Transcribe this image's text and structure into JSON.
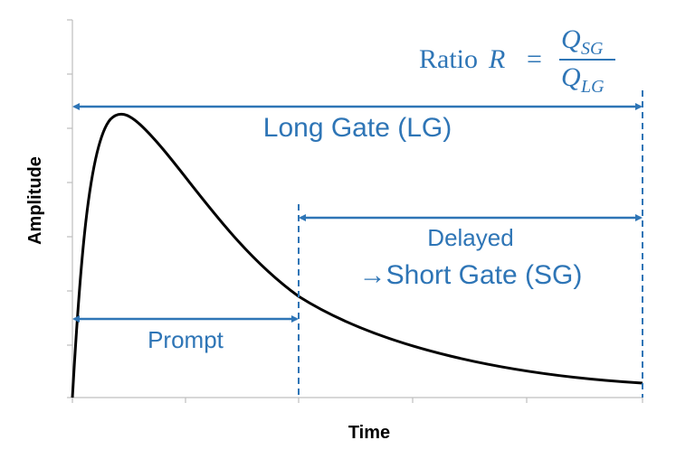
{
  "axes": {
    "y_label": "Amplitude",
    "x_label": "Time"
  },
  "gates": {
    "long": "Long Gate (LG)",
    "delayed": "Delayed",
    "short": "→Short Gate (SG)",
    "prompt": "Prompt"
  },
  "formula": {
    "word": "Ratio",
    "symbol": "R",
    "equals": "=",
    "numerator": {
      "base": "Q",
      "sub": "SG"
    },
    "denominator": {
      "base": "Q",
      "sub": "LG"
    }
  }
}
